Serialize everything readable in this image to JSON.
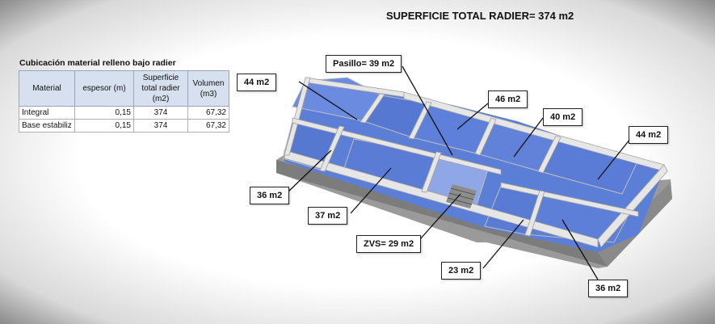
{
  "title": "SUPERFICIE TOTAL RADIER= 374 m2",
  "table": {
    "caption": "Cubicación material relleno bajo radier",
    "headers": [
      "Material",
      "espesor (m)",
      "Superficie total radier (m2)",
      "Volumen (m3)"
    ],
    "rows": [
      [
        "Integral",
        "0,15",
        "374",
        "67,32"
      ],
      [
        "Base estabiliz",
        "0,15",
        "374",
        "67,32"
      ]
    ]
  },
  "labels": {
    "pasillo": "Pasillo= 39 m2",
    "a44_left": "44 m2",
    "a46": "46 m2",
    "a40": "40 m2",
    "a44_right": "44 m2",
    "a36_left": "36 m2",
    "a37": "37 m2",
    "zvs": "ZVS= 29 m2",
    "a23": "23 m2",
    "a36_bottom": "36 m2"
  },
  "colors": {
    "floor": "#5b7fd6",
    "wall": "#e8e8e8",
    "base": "#9a9a9a"
  }
}
